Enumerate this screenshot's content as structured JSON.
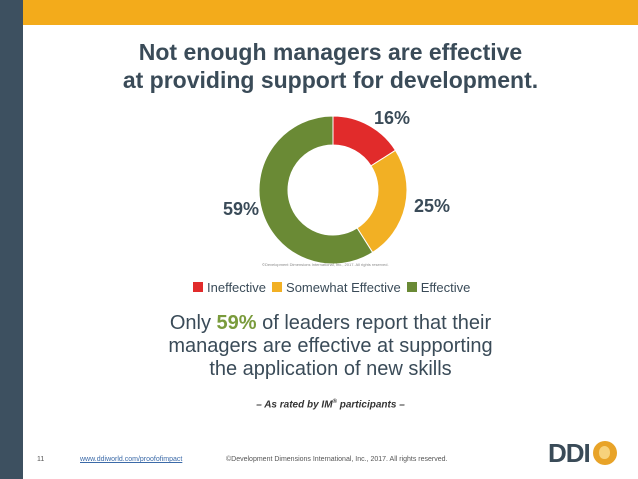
{
  "title": {
    "line1": "Not enough managers are effective",
    "line2": "at providing support for development."
  },
  "chart_data": {
    "type": "pie",
    "variant": "donut",
    "categories": [
      "Ineffective",
      "Somewhat Effective",
      "Effective"
    ],
    "values": [
      16,
      25,
      59
    ],
    "unit": "%",
    "labels": [
      "16%",
      "25%",
      "59%"
    ],
    "colors": [
      "#e12b2b",
      "#f2b024",
      "#6a8a35"
    ],
    "legend_position": "bottom",
    "copyright": "©Development Dimensions International, Inc., 2017. All rights reserved."
  },
  "legend": [
    {
      "label": "Ineffective",
      "color": "#e12b2b"
    },
    {
      "label": "Somewhat Effective",
      "color": "#f2b024"
    },
    {
      "label": "Effective",
      "color": "#6a8a35"
    }
  ],
  "statement": {
    "prefix": "Only",
    "highlight": "59%",
    "suffix": "of leaders report that their",
    "line2": "managers are effective at supporting",
    "line3": "the application of new skills"
  },
  "rated": {
    "text": "– As rated by IM",
    "sup": "®",
    "suffix": " participants –"
  },
  "footer": {
    "page": "11",
    "link": "www.ddiworld.com/proofofimpact",
    "copyright": "©Development Dimensions International, Inc., 2017. All rights reserved."
  },
  "logo": {
    "text": "DDI"
  }
}
